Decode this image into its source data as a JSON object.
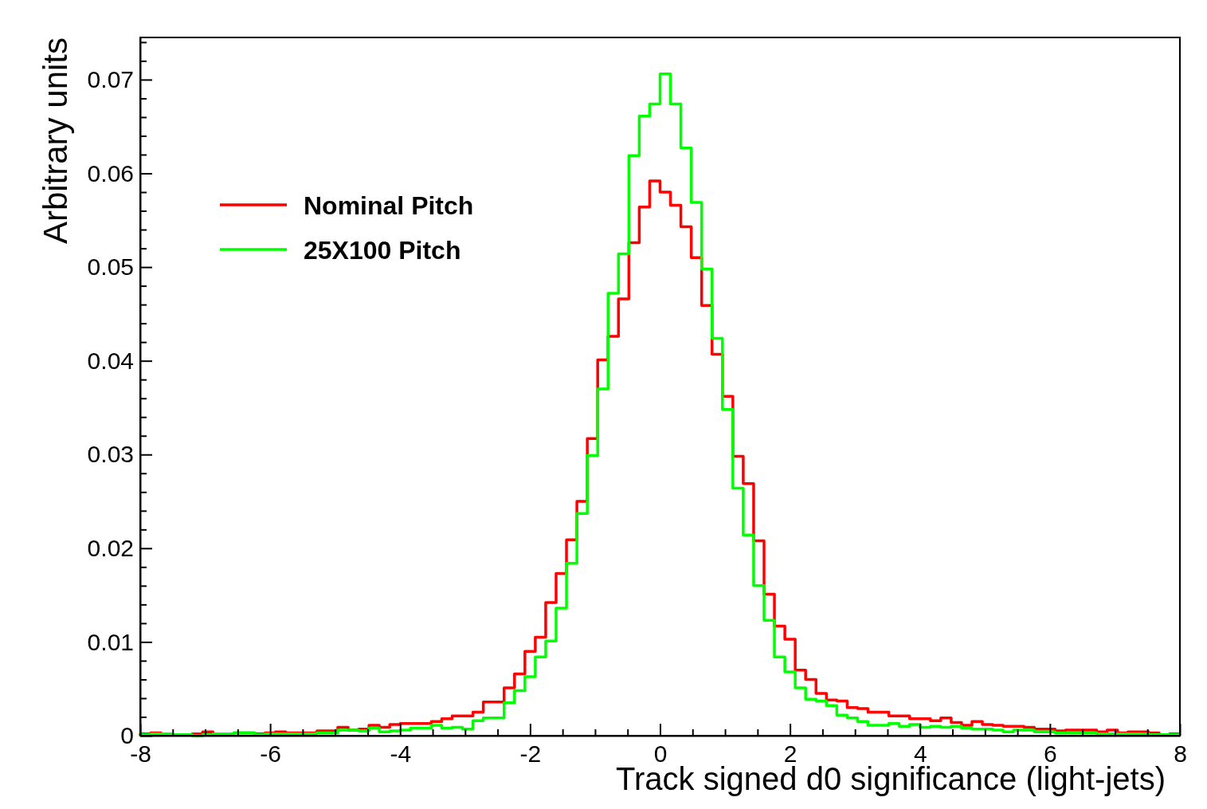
{
  "chart_data": {
    "type": "histogram",
    "xlabel": "Track signed d0 significance (light-jets)",
    "ylabel": "Arbitrary units",
    "bins": [
      -8,
      -7.84,
      -7.68,
      -7.52,
      -7.36,
      -7.2,
      -7.04,
      -6.88,
      -6.72,
      -6.56,
      -6.4,
      -6.24,
      -6.08,
      -5.92,
      -5.76,
      -5.6,
      -5.44,
      -5.28,
      -5.12,
      -4.96,
      -4.8,
      -4.64,
      -4.48,
      -4.32,
      -4.16,
      -4,
      -3.84,
      -3.68,
      -3.52,
      -3.36,
      -3.2,
      -3.04,
      -2.88,
      -2.72,
      -2.56,
      -2.4,
      -2.24,
      -2.08,
      -1.92,
      -1.76,
      -1.6,
      -1.44,
      -1.28,
      -1.12,
      -0.96,
      -0.8,
      -0.64,
      -0.48,
      -0.32,
      -0.16,
      0,
      0.16,
      0.32,
      0.48,
      0.64,
      0.8,
      0.96,
      1.12,
      1.28,
      1.44,
      1.6,
      1.76,
      1.92,
      2.08,
      2.24,
      2.4,
      2.56,
      2.72,
      2.88,
      3.04,
      3.2,
      3.36,
      3.52,
      3.68,
      3.84,
      4,
      4.16,
      4.32,
      4.48,
      4.64,
      4.8,
      4.96,
      5.12,
      5.28,
      5.44,
      5.6,
      5.76,
      5.92,
      6.08,
      6.24,
      6.4,
      6.56,
      6.72,
      6.88,
      7.04,
      7.2,
      7.36,
      7.52,
      7.68,
      7.84,
      8
    ],
    "series": [
      {
        "name": "Nominal Pitch",
        "color": "#ff0000",
        "values": [
          0.0002,
          0.0003,
          0.0002,
          0.0001,
          0.0001,
          0.0002,
          0.0004,
          0.0001,
          0.0002,
          0.0003,
          0.0003,
          0.0002,
          0.0003,
          0.0004,
          0.0003,
          0.0003,
          0.0003,
          0.0005,
          0.0005,
          0.0009,
          0.0006,
          0.0007,
          0.0011,
          0.0009,
          0.0012,
          0.0013,
          0.0013,
          0.0013,
          0.0015,
          0.0018,
          0.0021,
          0.0021,
          0.0025,
          0.0036,
          0.0036,
          0.0051,
          0.0066,
          0.009,
          0.0105,
          0.0142,
          0.0173,
          0.0209,
          0.025,
          0.0317,
          0.0401,
          0.0426,
          0.0466,
          0.0526,
          0.0564,
          0.0592,
          0.058,
          0.0566,
          0.0543,
          0.051,
          0.0459,
          0.0407,
          0.0362,
          0.0298,
          0.0269,
          0.0208,
          0.0151,
          0.0117,
          0.0103,
          0.007,
          0.006,
          0.0045,
          0.0038,
          0.0037,
          0.003,
          0.0029,
          0.0025,
          0.0025,
          0.0021,
          0.0021,
          0.0018,
          0.0018,
          0.0016,
          0.0019,
          0.0014,
          0.0011,
          0.0015,
          0.0012,
          0.0011,
          0.001,
          0.001,
          0.0009,
          0.0007,
          0.0007,
          0.0005,
          0.0006,
          0.0006,
          0.0006,
          0.0004,
          0.0006,
          0.0003,
          0.0004,
          0.0004,
          0.0003,
          0.0001,
          0.0002
        ]
      },
      {
        "name": "25X100 Pitch",
        "color": "#00ff00",
        "values": [
          0.0001,
          0.0002,
          0.0002,
          0.0001,
          0.0001,
          0,
          0.0001,
          0.0002,
          0.0002,
          0.0003,
          0.0003,
          0.0001,
          0.0002,
          0.0002,
          0.0002,
          0.0002,
          0.0002,
          0.0003,
          0.0003,
          0.0006,
          0.0006,
          0.0005,
          0.0008,
          0.0004,
          0.0005,
          0.0006,
          0.0008,
          0.0008,
          0.0011,
          0.0008,
          0.0009,
          0.0007,
          0.0016,
          0.0019,
          0.0019,
          0.0035,
          0.0048,
          0.0063,
          0.0084,
          0.0101,
          0.0136,
          0.0184,
          0.0237,
          0.0299,
          0.037,
          0.0472,
          0.0514,
          0.0619,
          0.0661,
          0.0674,
          0.0706,
          0.0674,
          0.0627,
          0.0569,
          0.0498,
          0.0424,
          0.0348,
          0.0264,
          0.0214,
          0.016,
          0.0123,
          0.0084,
          0.0068,
          0.0051,
          0.0039,
          0.0037,
          0.0032,
          0.0022,
          0.0019,
          0.0015,
          0.0011,
          0.0011,
          0.0013,
          0.001,
          0.0012,
          0.0009,
          0.001,
          0.0009,
          0.001,
          0.0008,
          0.0007,
          0.0007,
          0.0006,
          0.0004,
          0.0006,
          0.0006,
          0.0004,
          0.0004,
          0.0003,
          0.0003,
          0.0003,
          0.0003,
          0.0002,
          0.0002,
          0.0002,
          0.0002,
          0.0002,
          0.0001,
          0.0001,
          0.0001
        ]
      }
    ],
    "xlim": [
      -8,
      8
    ],
    "xticks": [
      -8,
      {
        "value": -7.5,
        "label": null
      },
      {
        "value": -7,
        "label": null
      },
      {
        "value": -6.5,
        "label": null
      },
      -6,
      {
        "value": -5.5,
        "label": null
      },
      {
        "value": -5,
        "label": null
      },
      {
        "value": -4.5,
        "label": null
      },
      -4,
      {
        "value": -3.5,
        "label": null
      },
      {
        "value": -3,
        "label": null
      },
      {
        "value": -2.5,
        "label": null
      },
      -2,
      {
        "value": -1.5,
        "label": null
      },
      {
        "value": -1,
        "label": null
      },
      {
        "value": -0.5,
        "label": null
      },
      0,
      {
        "value": 0.5,
        "label": null
      },
      {
        "value": 1,
        "label": null
      },
      {
        "value": 1.5,
        "label": null
      },
      2,
      {
        "value": 2.5,
        "label": null
      },
      {
        "value": 3,
        "label": null
      },
      {
        "value": 3.5,
        "label": null
      },
      4,
      {
        "value": 4.5,
        "label": null
      },
      {
        "value": 5,
        "label": null
      },
      {
        "value": 5.5,
        "label": null
      },
      6,
      {
        "value": 6.5,
        "label": null
      },
      {
        "value": 7,
        "label": null
      },
      {
        "value": 7.5,
        "label": null
      },
      8
    ],
    "ylim": [
      0,
      0.0745
    ],
    "yticks": [
      0,
      {
        "value": 0.002,
        "label": null
      },
      {
        "value": 0.004,
        "label": null
      },
      {
        "value": 0.006,
        "label": null
      },
      {
        "value": 0.008,
        "label": null
      },
      0.01,
      {
        "value": 0.012,
        "label": null
      },
      {
        "value": 0.014,
        "label": null
      },
      {
        "value": 0.016,
        "label": null
      },
      {
        "value": 0.018,
        "label": null
      },
      0.02,
      {
        "value": 0.022,
        "label": null
      },
      {
        "value": 0.024,
        "label": null
      },
      {
        "value": 0.026,
        "label": null
      },
      {
        "value": 0.028,
        "label": null
      },
      0.03,
      {
        "value": 0.032,
        "label": null
      },
      {
        "value": 0.034,
        "label": null
      },
      {
        "value": 0.036,
        "label": null
      },
      {
        "value": 0.038,
        "label": null
      },
      0.04,
      {
        "value": 0.042,
        "label": null
      },
      {
        "value": 0.044,
        "label": null
      },
      {
        "value": 0.046,
        "label": null
      },
      {
        "value": 0.048,
        "label": null
      },
      0.05,
      {
        "value": 0.052,
        "label": null
      },
      {
        "value": 0.054,
        "label": null
      },
      {
        "value": 0.056,
        "label": null
      },
      {
        "value": 0.058,
        "label": null
      },
      0.06,
      {
        "value": 0.062,
        "label": null
      },
      {
        "value": 0.064,
        "label": null
      },
      {
        "value": 0.066,
        "label": null
      },
      {
        "value": 0.068,
        "label": null
      },
      0.07,
      {
        "value": 0.072,
        "label": null
      },
      {
        "value": 0.074,
        "label": null
      }
    ],
    "grid": false,
    "legend": "top left",
    "line_style": "solid",
    "marker": "none"
  }
}
